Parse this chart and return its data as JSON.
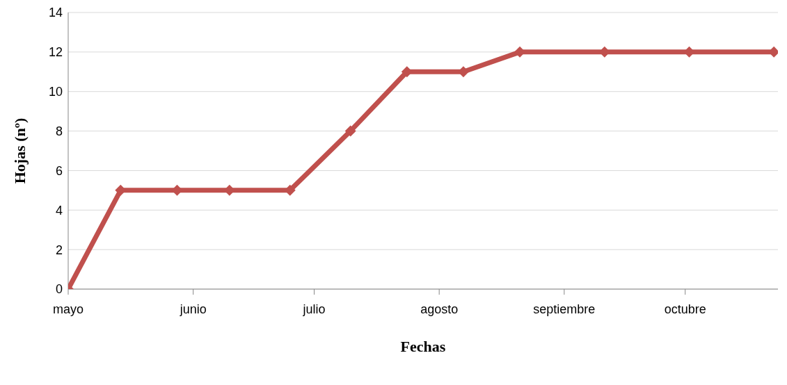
{
  "chart_data": {
    "type": "line",
    "xlabel": "Fechas",
    "ylabel": "Hojas (nº)",
    "x": [
      "--05-01",
      "--05-14",
      "--05-28",
      "--06-10",
      "--06-25",
      "--07-10",
      "--07-24",
      "--08-07",
      "--08-21",
      "--09-11",
      "--10-02",
      "--10-23"
    ],
    "series": [
      {
        "color": "#c0504d",
        "values": [
          0,
          5,
          5,
          5,
          5,
          8,
          11,
          11,
          12,
          12,
          12,
          12
        ]
      }
    ],
    "xlim": [
      "--05-01",
      "--10-24"
    ],
    "xticks": [
      {
        "value": "--05-01",
        "label": "mayo"
      },
      {
        "value": "--06-01",
        "label": "junio"
      },
      {
        "value": "--07-01",
        "label": "julio"
      },
      {
        "value": "--08-01",
        "label": "agosto"
      },
      {
        "value": "--09-01",
        "label": "septiembre"
      },
      {
        "value": "--10-01",
        "label": "octubre"
      }
    ],
    "ylim": [
      0,
      14
    ],
    "yticks": [
      0,
      2,
      4,
      6,
      8,
      10,
      12,
      14
    ],
    "grid": "y",
    "marker": "diamond",
    "line_style": "solid",
    "legend": false
  }
}
